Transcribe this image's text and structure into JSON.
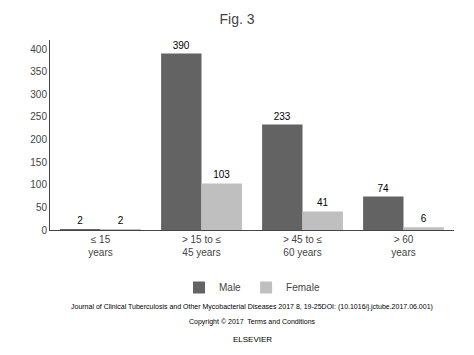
{
  "chart_data": {
    "type": "bar",
    "title": "Fig. 3",
    "categories": [
      "≤ 15\nyears",
      "> 15 to ≤\n45 years",
      "> 45 to ≤\n60 years",
      "> 60\nyears"
    ],
    "series": [
      {
        "name": "Male",
        "color": "#636363",
        "values": [
          2,
          390,
          233,
          74
        ]
      },
      {
        "name": "Female",
        "color": "#bfbfbf",
        "values": [
          2,
          103,
          41,
          6
        ]
      }
    ],
    "ylim": [
      0,
      420
    ],
    "yticks": [
      0,
      50,
      100,
      150,
      200,
      250,
      300,
      350,
      400
    ],
    "grid": false,
    "legend": "bottom",
    "data_labels": true,
    "annotations": [
      "Journal of Clinical Tuberculosis and Other Mycobacterial Diseases 2017 8, 19-25DOI: (10.1016/j.jctube.2017.06.001)",
      "Copyright © 2017  Terms and Conditions",
      "ELSEVIER"
    ]
  }
}
